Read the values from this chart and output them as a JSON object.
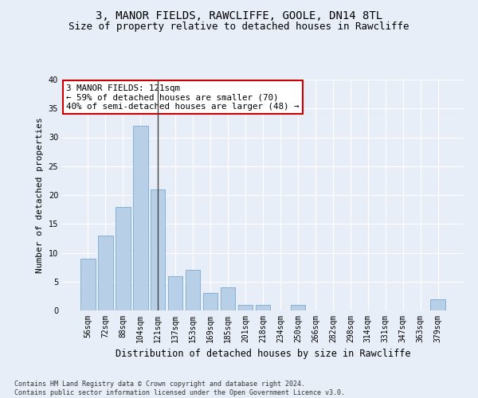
{
  "title": "3, MANOR FIELDS, RAWCLIFFE, GOOLE, DN14 8TL",
  "subtitle": "Size of property relative to detached houses in Rawcliffe",
  "xlabel": "Distribution of detached houses by size in Rawcliffe",
  "ylabel": "Number of detached properties",
  "categories": [
    "56sqm",
    "72sqm",
    "88sqm",
    "104sqm",
    "121sqm",
    "137sqm",
    "153sqm",
    "169sqm",
    "185sqm",
    "201sqm",
    "218sqm",
    "234sqm",
    "250sqm",
    "266sqm",
    "282sqm",
    "298sqm",
    "314sqm",
    "331sqm",
    "347sqm",
    "363sqm",
    "379sqm"
  ],
  "values": [
    9,
    13,
    18,
    32,
    21,
    6,
    7,
    3,
    4,
    1,
    1,
    0,
    1,
    0,
    0,
    0,
    0,
    0,
    0,
    0,
    2
  ],
  "bar_color": "#b8cfe8",
  "bar_edge_color": "#7aaad0",
  "vline_index": 4,
  "vline_color": "#444444",
  "annotation_lines": [
    "3 MANOR FIELDS: 121sqm",
    "← 59% of detached houses are smaller (70)",
    "40% of semi-detached houses are larger (48) →"
  ],
  "annotation_box_color": "#ffffff",
  "annotation_box_edge_color": "#cc0000",
  "bg_color": "#e8eef8",
  "grid_color": "#ffffff",
  "ylim": [
    0,
    40
  ],
  "yticks": [
    0,
    5,
    10,
    15,
    20,
    25,
    30,
    35,
    40
  ],
  "footer": "Contains HM Land Registry data © Crown copyright and database right 2024.\nContains public sector information licensed under the Open Government Licence v3.0.",
  "title_fontsize": 10,
  "subtitle_fontsize": 9,
  "annotation_fontsize": 7.8,
  "tick_fontsize": 7,
  "ylabel_fontsize": 8,
  "xlabel_fontsize": 8.5,
  "footer_fontsize": 6
}
